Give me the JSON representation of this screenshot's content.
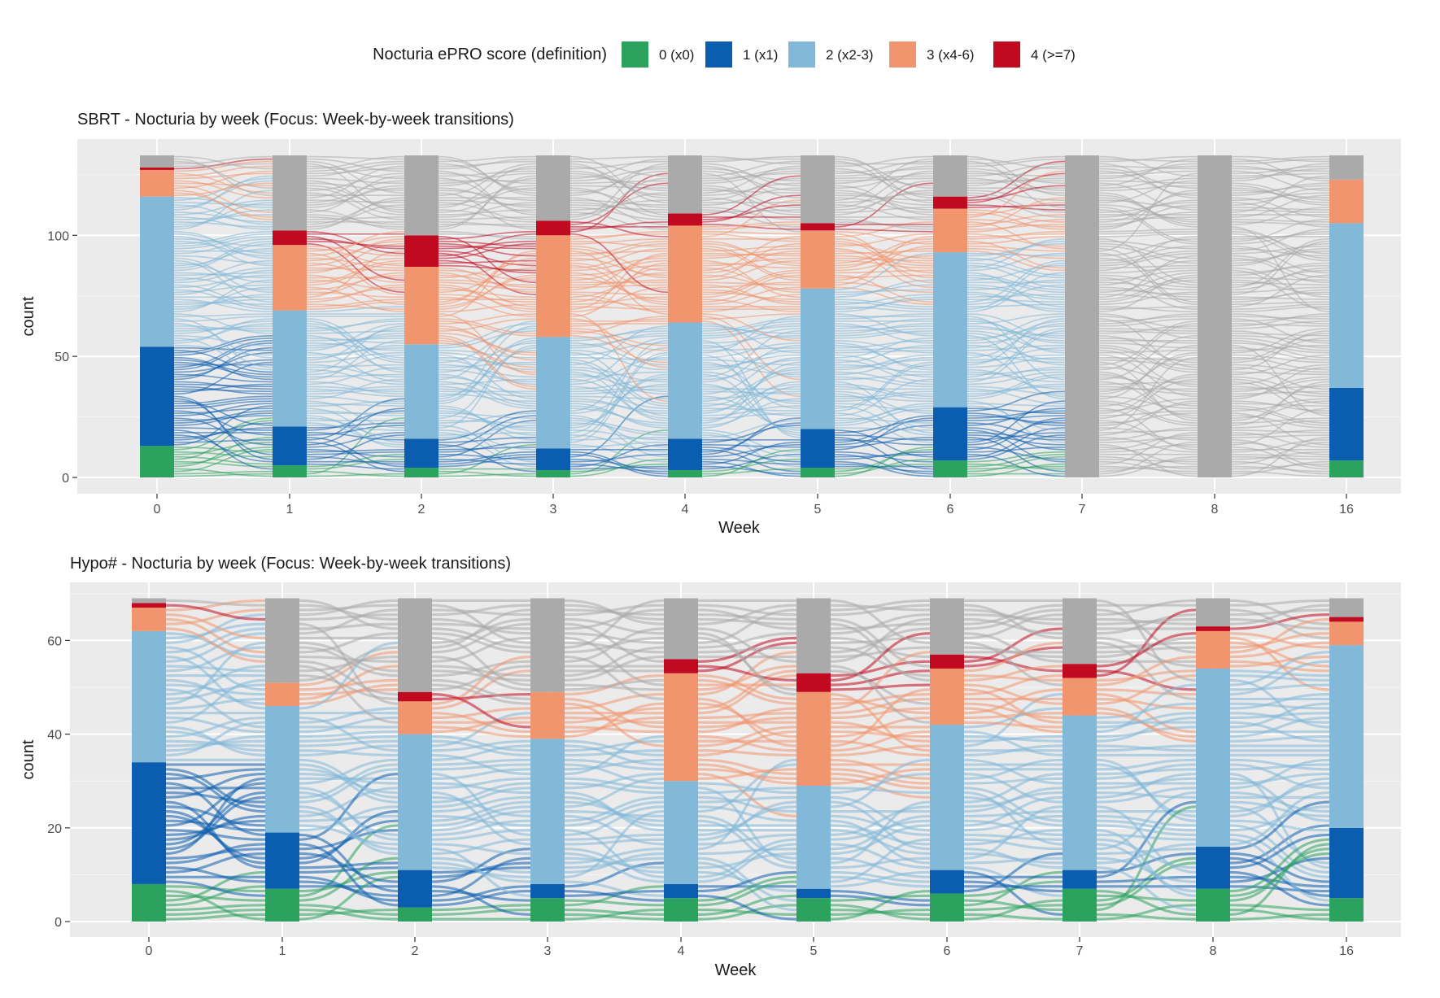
{
  "legend": {
    "title": "Nocturia ePRO score (definition)",
    "items": [
      {
        "key": "0",
        "label": "0 (x0)",
        "color": "#2CA25F"
      },
      {
        "key": "1",
        "label": "1 (x1)",
        "color": "#0B5DAF"
      },
      {
        "key": "2",
        "label": "2 (x2-3)",
        "color": "#82B8D8"
      },
      {
        "key": "3",
        "label": "3 (x4-6)",
        "color": "#F1956F"
      },
      {
        "key": "4",
        "label": "4 (>=7)",
        "color": "#C10A20"
      }
    ],
    "missing_color": "#AAAAAA"
  },
  "chart_data": [
    {
      "type": "alluvial",
      "title": "SBRT - Nocturia by week (Focus: Week-by-week transitions)",
      "xlabel": "Week",
      "ylabel": "count",
      "categories": [
        "0",
        "1",
        "2",
        "3",
        "4",
        "5",
        "6",
        "7",
        "8",
        "16"
      ],
      "ylim": [
        0,
        135
      ],
      "yticks": [
        0,
        50,
        100
      ],
      "total": 133,
      "stack_order_bottom_to_top": [
        "0",
        "1",
        "2",
        "3",
        "4",
        "missing"
      ],
      "series": [
        {
          "name": "0 (x0)",
          "values": [
            13,
            5,
            4,
            3,
            3,
            4,
            7,
            0,
            0,
            7
          ]
        },
        {
          "name": "1 (x1)",
          "values": [
            41,
            16,
            12,
            9,
            13,
            16,
            22,
            0,
            0,
            30
          ]
        },
        {
          "name": "2 (x2-3)",
          "values": [
            62,
            48,
            39,
            46,
            48,
            58,
            64,
            0,
            0,
            68
          ]
        },
        {
          "name": "3 (x4-6)",
          "values": [
            11,
            27,
            32,
            42,
            40,
            24,
            18,
            0,
            0,
            18
          ]
        },
        {
          "name": "4 (>=7)",
          "values": [
            1,
            6,
            13,
            6,
            5,
            3,
            5,
            0,
            0,
            0
          ]
        },
        {
          "name": "missing",
          "values": [
            5,
            31,
            33,
            27,
            24,
            28,
            17,
            133,
            133,
            10
          ]
        }
      ]
    },
    {
      "type": "alluvial",
      "title": "Hypo# - Nocturia by week (Focus: Week-by-week transitions)",
      "xlabel": "Week",
      "ylabel": "count",
      "categories": [
        "0",
        "1",
        "2",
        "3",
        "4",
        "5",
        "6",
        "7",
        "8",
        "16"
      ],
      "ylim": [
        0,
        72
      ],
      "yticks": [
        0,
        20,
        40,
        60
      ],
      "total": 69,
      "stack_order_bottom_to_top": [
        "0",
        "1",
        "2",
        "3",
        "4",
        "missing"
      ],
      "series": [
        {
          "name": "0 (x0)",
          "values": [
            8,
            7,
            3,
            5,
            5,
            5,
            6,
            7,
            7,
            5
          ]
        },
        {
          "name": "1 (x1)",
          "values": [
            26,
            12,
            8,
            3,
            3,
            2,
            5,
            4,
            9,
            15
          ]
        },
        {
          "name": "2 (x2-3)",
          "values": [
            28,
            27,
            29,
            31,
            22,
            22,
            31,
            33,
            38,
            39
          ]
        },
        {
          "name": "3 (x4-6)",
          "values": [
            5,
            5,
            7,
            10,
            23,
            20,
            12,
            8,
            8,
            5
          ]
        },
        {
          "name": "4 (>=7)",
          "values": [
            1,
            0,
            2,
            0,
            3,
            4,
            3,
            3,
            1,
            1
          ]
        },
        {
          "name": "missing",
          "values": [
            1,
            18,
            20,
            20,
            13,
            16,
            12,
            14,
            6,
            4
          ]
        }
      ]
    }
  ]
}
